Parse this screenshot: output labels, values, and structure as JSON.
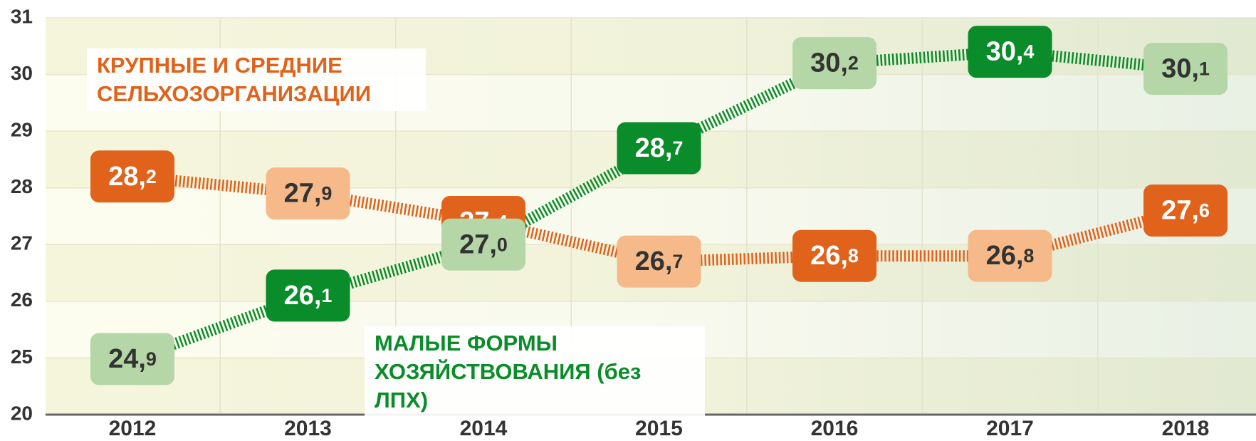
{
  "chart_data": {
    "type": "line",
    "categories": [
      "2012",
      "2013",
      "2014",
      "2015",
      "2016",
      "2017",
      "2018"
    ],
    "ylim": [
      20,
      31
    ],
    "axis_break": 25,
    "yticks": [
      31,
      30,
      29,
      28,
      27,
      26,
      25,
      20
    ],
    "grid": true,
    "series": [
      {
        "name": "КРУПНЫЕ И СРЕДНИЕ СЕЛЬХОЗОРГАНИЗАЦИИ",
        "color": "#e0621b",
        "light_color": "#f5b98a",
        "values": [
          28.2,
          27.9,
          27.4,
          26.7,
          26.8,
          26.8,
          27.6
        ],
        "value_labels": [
          "28,2",
          "27,9",
          "27,4",
          "26,7",
          "26,8",
          "26,8",
          "27,6"
        ]
      },
      {
        "name": "МАЛЫЕ ФОРМЫ ХОЗЯЙСТВОВАНИЯ (без ЛПХ)",
        "color": "#0a8c2a",
        "light_color": "#b5d6a7",
        "values": [
          24.9,
          26.1,
          27.0,
          28.7,
          30.2,
          30.4,
          30.1
        ],
        "value_labels": [
          "24,9",
          "26,1",
          "27,0",
          "28,7",
          "30,2",
          "30,4",
          "30,1"
        ]
      }
    ]
  }
}
